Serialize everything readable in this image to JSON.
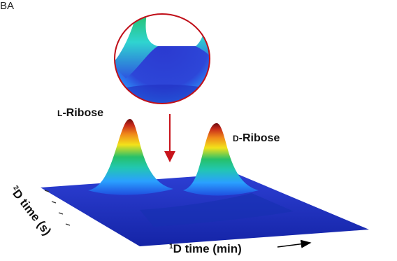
{
  "panel_label": "BA",
  "chart_data": {
    "type": "surface",
    "peaks": [
      {
        "name": "L-Ribose",
        "label_prefix": "L",
        "label_rest": "-Ribose"
      },
      {
        "name": "D-Ribose",
        "label_prefix": "D",
        "label_rest": "-Ribose"
      }
    ],
    "x_axis": {
      "label_superscript": "1",
      "label_text": "D time (min)"
    },
    "y_axis": {
      "label_superscript": "2",
      "label_text": "D time (s)"
    },
    "inset": {
      "description_visible": false,
      "border_color": "#c0101a"
    },
    "colors": {
      "base": "#1f2fbf",
      "low": "#2aa0ff",
      "mid": "#26c06a",
      "high_yellow": "#f2e21a",
      "high_orange": "#f08a1a",
      "top": "#8a0f14",
      "arrow": "#c8141c"
    }
  }
}
